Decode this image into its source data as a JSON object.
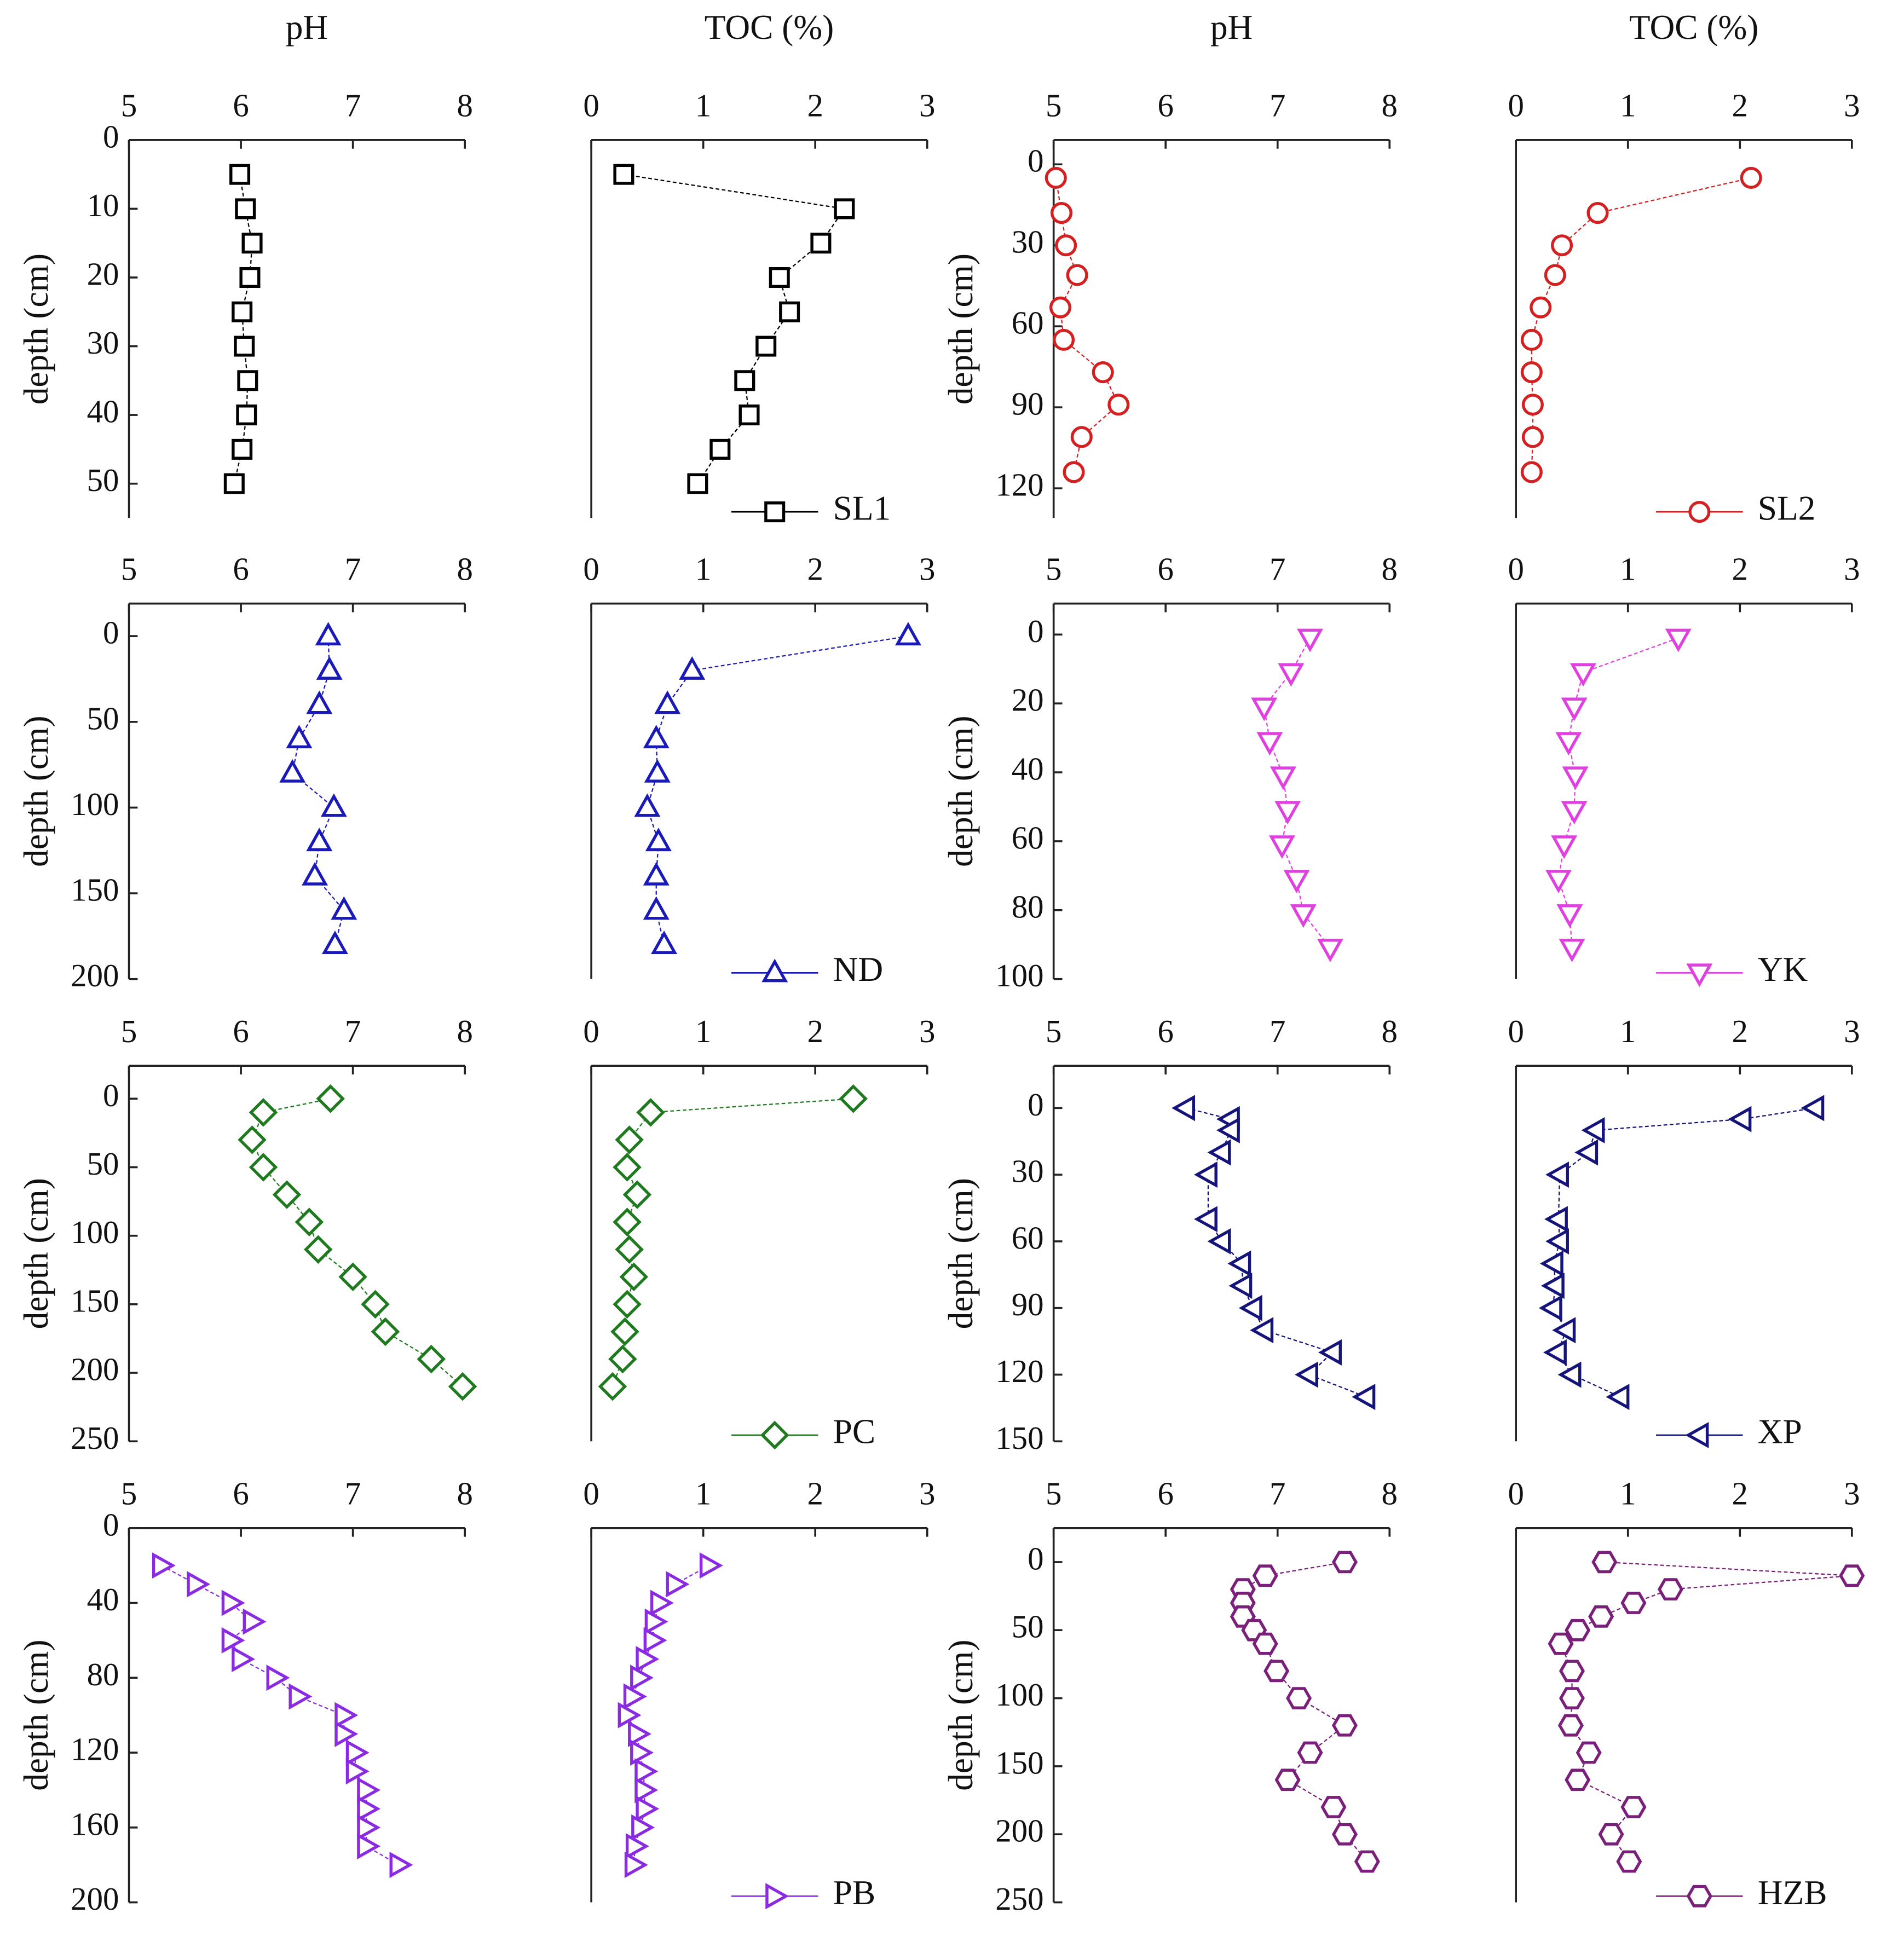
{
  "chart_data": [
    {
      "type": "line",
      "title": "pH",
      "ylabel": "depth (cm)",
      "xlim": [
        5,
        8
      ],
      "xticks": [
        5,
        6,
        7,
        8
      ],
      "ylim": [
        0,
        55
      ],
      "yticks": [
        0,
        10,
        20,
        30,
        40,
        50
      ],
      "series": [
        {
          "color": "#000000",
          "marker": "square",
          "x": [
            5.99,
            6.04,
            6.1,
            6.08,
            6.01,
            6.03,
            6.06,
            6.05,
            6.01,
            5.94
          ],
          "y": [
            5,
            10,
            15,
            20,
            25,
            30,
            35,
            40,
            45,
            50
          ]
        }
      ]
    },
    {
      "type": "line",
      "title": "TOC (%)",
      "xlim": [
        0,
        3
      ],
      "xticks": [
        0,
        1,
        2,
        3
      ],
      "ylim": [
        0,
        55
      ],
      "series": [
        {
          "name": "SL1",
          "color": "#000000",
          "marker": "square",
          "x": [
            0.29,
            2.26,
            2.05,
            1.68,
            1.77,
            1.56,
            1.37,
            1.41,
            1.15,
            0.95
          ],
          "y": [
            5,
            10,
            15,
            20,
            25,
            30,
            35,
            40,
            45,
            50
          ]
        }
      ]
    },
    {
      "type": "line",
      "title": "pH",
      "ylabel": "depth (cm)",
      "xlim": [
        5,
        8
      ],
      "xticks": [
        5,
        6,
        7,
        8
      ],
      "ylim": [
        -9,
        131
      ],
      "yticks": [
        0,
        30,
        60,
        90,
        120
      ],
      "series": [
        {
          "color": "#d42020",
          "marker": "circle",
          "x": [
            5.02,
            5.07,
            5.11,
            5.21,
            5.06,
            5.09,
            5.44,
            5.58,
            5.25,
            5.18
          ],
          "y": [
            5,
            18,
            30,
            41,
            53,
            65,
            77,
            89,
            101,
            114
          ]
        }
      ]
    },
    {
      "type": "line",
      "title": "TOC (%)",
      "xlim": [
        0,
        3
      ],
      "xticks": [
        0,
        1,
        2,
        3
      ],
      "ylim": [
        -9,
        131
      ],
      "series": [
        {
          "name": "SL2",
          "color": "#d42020",
          "marker": "circle",
          "x": [
            2.1,
            0.73,
            0.41,
            0.35,
            0.22,
            0.14,
            0.14,
            0.15,
            0.15,
            0.14
          ],
          "y": [
            5,
            18,
            30,
            41,
            53,
            65,
            77,
            89,
            101,
            114
          ]
        }
      ]
    },
    {
      "type": "line",
      "ylabel": "depth (cm)",
      "xlim": [
        5,
        8
      ],
      "xticks": [
        5,
        6,
        7,
        8
      ],
      "ylim": [
        -19,
        200
      ],
      "yticks": [
        0,
        50,
        100,
        150,
        200
      ],
      "series": [
        {
          "color": "#1a1ab8",
          "marker": "triangle-up",
          "x": [
            6.78,
            6.79,
            6.7,
            6.52,
            6.46,
            6.83,
            6.7,
            6.66,
            6.92,
            6.84
          ],
          "y": [
            0,
            20,
            40,
            60,
            80,
            100,
            120,
            140,
            160,
            180
          ]
        }
      ]
    },
    {
      "type": "line",
      "xlim": [
        0,
        3
      ],
      "xticks": [
        0,
        1,
        2,
        3
      ],
      "ylim": [
        -19,
        200
      ],
      "series": [
        {
          "name": "ND",
          "color": "#1a1ab8",
          "marker": "triangle-up",
          "x": [
            2.83,
            0.9,
            0.68,
            0.58,
            0.59,
            0.5,
            0.6,
            0.58,
            0.58,
            0.65
          ],
          "y": [
            0,
            20,
            40,
            60,
            80,
            100,
            120,
            140,
            160,
            180
          ]
        }
      ]
    },
    {
      "type": "line",
      "ylabel": "depth (cm)",
      "xlim": [
        5,
        8
      ],
      "xticks": [
        5,
        6,
        7,
        8
      ],
      "ylim": [
        -9,
        100
      ],
      "yticks": [
        0,
        20,
        40,
        60,
        80,
        100
      ],
      "series": [
        {
          "color": "#e040e0",
          "marker": "triangle-down",
          "x": [
            7.29,
            7.12,
            6.88,
            6.93,
            7.05,
            7.09,
            7.04,
            7.17,
            7.23,
            7.47
          ],
          "y": [
            1,
            11,
            21,
            31,
            41,
            51,
            61,
            71,
            81,
            91
          ]
        }
      ]
    },
    {
      "type": "line",
      "xlim": [
        0,
        3
      ],
      "xticks": [
        0,
        1,
        2,
        3
      ],
      "ylim": [
        -9,
        100
      ],
      "series": [
        {
          "name": "YK",
          "color": "#e040e0",
          "marker": "triangle-down",
          "x": [
            1.45,
            0.6,
            0.52,
            0.47,
            0.53,
            0.52,
            0.43,
            0.38,
            0.48,
            0.5
          ],
          "y": [
            1,
            11,
            21,
            31,
            41,
            51,
            61,
            71,
            81,
            91
          ]
        }
      ]
    },
    {
      "type": "line",
      "ylabel": "depth (cm)",
      "xlim": [
        5,
        8
      ],
      "xticks": [
        5,
        6,
        7,
        8
      ],
      "ylim": [
        -24,
        250
      ],
      "yticks": [
        0,
        50,
        100,
        150,
        200,
        250
      ],
      "series": [
        {
          "color": "#1f7a1f",
          "marker": "diamond",
          "x": [
            6.8,
            6.2,
            6.1,
            6.2,
            6.41,
            6.61,
            6.69,
            7.0,
            7.2,
            7.29,
            7.7,
            7.98
          ],
          "y": [
            0,
            10,
            30,
            50,
            70,
            90,
            110,
            130,
            150,
            170,
            190,
            210
          ]
        }
      ]
    },
    {
      "type": "line",
      "xlim": [
        0,
        3
      ],
      "xticks": [
        0,
        1,
        2,
        3
      ],
      "ylim": [
        -24,
        250
      ],
      "series": [
        {
          "name": "PC",
          "color": "#1f7a1f",
          "marker": "diamond",
          "x": [
            2.34,
            0.53,
            0.34,
            0.32,
            0.41,
            0.32,
            0.34,
            0.38,
            0.32,
            0.3,
            0.28,
            0.19
          ],
          "y": [
            0,
            10,
            30,
            50,
            70,
            90,
            110,
            130,
            150,
            170,
            190,
            210
          ]
        }
      ]
    },
    {
      "type": "line",
      "ylabel": "depth (cm)",
      "xlim": [
        5,
        8
      ],
      "xticks": [
        5,
        6,
        7,
        8
      ],
      "ylim": [
        -19,
        150
      ],
      "yticks": [
        0,
        30,
        60,
        90,
        120,
        150
      ],
      "series": [
        {
          "color": "#14147a",
          "marker": "triangle-left",
          "x": [
            6.18,
            6.58,
            6.58,
            6.5,
            6.38,
            6.38,
            6.5,
            6.68,
            6.69,
            6.78,
            6.88,
            7.49,
            7.28,
            7.79
          ],
          "y": [
            0,
            5,
            10,
            20,
            30,
            50,
            60,
            70,
            80,
            90,
            100,
            110,
            120,
            130
          ]
        }
      ]
    },
    {
      "type": "line",
      "xlim": [
        0,
        3
      ],
      "xticks": [
        0,
        1,
        2,
        3
      ],
      "ylim": [
        -19,
        150
      ],
      "series": [
        {
          "name": "XP",
          "color": "#14147a",
          "marker": "triangle-left",
          "x": [
            2.67,
            2.02,
            0.71,
            0.65,
            0.39,
            0.38,
            0.39,
            0.34,
            0.35,
            0.33,
            0.45,
            0.37,
            0.5,
            0.93
          ],
          "y": [
            0,
            5,
            10,
            20,
            30,
            50,
            60,
            70,
            80,
            90,
            100,
            110,
            120,
            130
          ]
        }
      ]
    },
    {
      "type": "line",
      "ylabel": "depth (cm)",
      "xlim": [
        5,
        8
      ],
      "xticks": [
        5,
        6,
        7,
        8
      ],
      "ylim": [
        0,
        200
      ],
      "yticks": [
        0,
        40,
        80,
        120,
        160,
        200
      ],
      "series": [
        {
          "color": "#8a2be2",
          "marker": "triangle-right",
          "x": [
            5.29,
            5.6,
            5.91,
            6.1,
            5.91,
            6.0,
            6.31,
            6.51,
            6.92,
            6.92,
            7.02,
            7.02,
            7.12,
            7.12,
            7.12,
            7.12,
            7.41
          ],
          "y": [
            20,
            30,
            40,
            50,
            60,
            70,
            80,
            90,
            100,
            110,
            120,
            130,
            140,
            150,
            160,
            170,
            180
          ]
        }
      ]
    },
    {
      "type": "line",
      "xlim": [
        0,
        3
      ],
      "xticks": [
        0,
        1,
        2,
        3
      ],
      "ylim": [
        0,
        200
      ],
      "series": [
        {
          "name": "PB",
          "color": "#8a2be2",
          "marker": "triangle-right",
          "x": [
            1.05,
            0.75,
            0.61,
            0.56,
            0.55,
            0.48,
            0.43,
            0.37,
            0.32,
            0.41,
            0.43,
            0.47,
            0.47,
            0.48,
            0.44,
            0.39,
            0.38
          ],
          "y": [
            20,
            30,
            40,
            50,
            60,
            70,
            80,
            90,
            100,
            110,
            120,
            130,
            140,
            150,
            160,
            170,
            180
          ]
        }
      ]
    },
    {
      "type": "line",
      "ylabel": "depth (cm)",
      "xlim": [
        5,
        8
      ],
      "xticks": [
        5,
        6,
        7,
        8
      ],
      "ylim": [
        -25,
        250
      ],
      "yticks": [
        0,
        50,
        100,
        150,
        200,
        250
      ],
      "series": [
        {
          "color": "#7a1f7a",
          "marker": "hexagon",
          "x": [
            7.6,
            6.89,
            6.69,
            6.69,
            6.69,
            6.79,
            6.89,
            6.99,
            7.19,
            7.6,
            7.29,
            7.09,
            7.5,
            7.6,
            7.8
          ],
          "y": [
            0,
            10,
            20,
            30,
            40,
            50,
            60,
            80,
            100,
            120,
            140,
            160,
            180,
            200,
            220
          ]
        }
      ]
    },
    {
      "type": "line",
      "xlim": [
        0,
        3
      ],
      "xticks": [
        0,
        1,
        2,
        3
      ],
      "ylim": [
        -25,
        250
      ],
      "series": [
        {
          "name": "HZB",
          "color": "#7a1f7a",
          "marker": "hexagon",
          "x": [
            0.79,
            3.0,
            1.38,
            1.05,
            0.76,
            0.55,
            0.4,
            0.5,
            0.5,
            0.49,
            0.65,
            0.55,
            1.05,
            0.85,
            1.01
          ],
          "y": [
            0,
            10,
            20,
            30,
            40,
            50,
            60,
            80,
            100,
            120,
            140,
            160,
            180,
            200,
            220
          ]
        }
      ]
    }
  ]
}
